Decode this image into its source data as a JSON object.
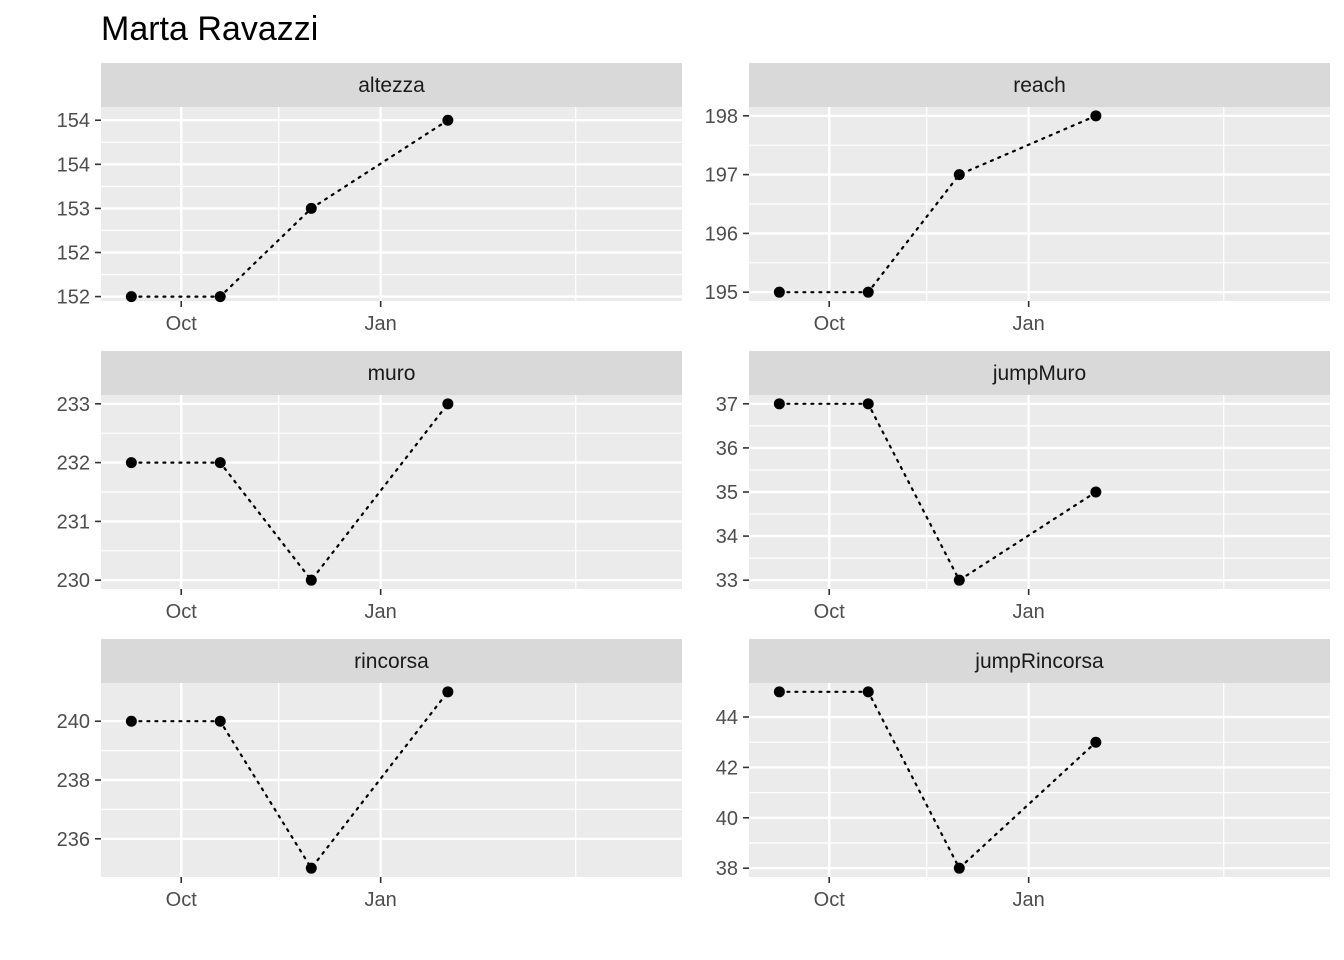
{
  "chart_data": {
    "title": "Marta Ravazzi",
    "type": "line",
    "x_tick_labels": [
      "Oct",
      "Jan"
    ],
    "dates": [
      "2022-09-08",
      "2022-10-19",
      "2022-11-30",
      "2023-02-01"
    ],
    "panels": [
      {
        "name": "altezza",
        "values": [
          151.7,
          151.7,
          152.7,
          153.7
        ],
        "ylim": [
          151.65,
          153.85
        ],
        "yticks": [
          151.7,
          152.2,
          152.7,
          153.2,
          153.7
        ],
        "ytick_labels": [
          "152",
          "152",
          "153",
          "154",
          "154"
        ]
      },
      {
        "name": "reach",
        "values": [
          195,
          195,
          197,
          198
        ],
        "ylim": [
          194.85,
          198.15
        ],
        "yticks": [
          195,
          196,
          197,
          198
        ],
        "ytick_labels": [
          "195",
          "196",
          "197",
          "198"
        ]
      },
      {
        "name": "muro",
        "values": [
          232,
          232,
          230,
          233
        ],
        "ylim": [
          229.85,
          233.15
        ],
        "yticks": [
          230,
          231,
          232,
          233
        ],
        "ytick_labels": [
          "230",
          "231",
          "232",
          "233"
        ]
      },
      {
        "name": "jumpMuro",
        "values": [
          37,
          37,
          33,
          35
        ],
        "ylim": [
          32.8,
          37.2
        ],
        "yticks": [
          33,
          34,
          35,
          36,
          37
        ],
        "ytick_labels": [
          "33",
          "34",
          "35",
          "36",
          "37"
        ]
      },
      {
        "name": "rincorsa",
        "values": [
          240,
          240,
          235,
          241
        ],
        "ylim": [
          234.7,
          241.3
        ],
        "yticks": [
          236,
          238,
          240
        ],
        "ytick_labels": [
          "236",
          "238",
          "240"
        ]
      },
      {
        "name": "jumpRincorsa",
        "values": [
          45,
          45,
          38,
          43
        ],
        "ylim": [
          37.65,
          45.35
        ],
        "yticks": [
          38,
          40,
          42,
          44
        ],
        "ytick_labels": [
          "38",
          "40",
          "42",
          "44"
        ]
      }
    ],
    "grid": true,
    "legend": "none",
    "colors": {
      "panel_background": "#ebebeb",
      "strip_background": "#d9d9d9",
      "grid": "#ffffff",
      "line": "#000000",
      "point": "#000000",
      "tick_text": "#4d4d4d"
    }
  }
}
